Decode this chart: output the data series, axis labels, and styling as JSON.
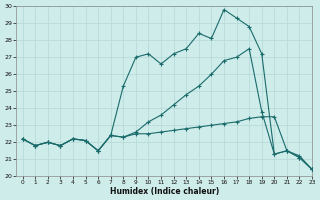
{
  "xlabel": "Humidex (Indice chaleur)",
  "bg_color": "#ceecea",
  "grid_color": "#b8dbd9",
  "line_color": "#1a6b6b",
  "xlim": [
    -0.5,
    23
  ],
  "ylim": [
    20,
    30
  ],
  "xticks": [
    0,
    1,
    2,
    3,
    4,
    5,
    6,
    7,
    8,
    9,
    10,
    11,
    12,
    13,
    14,
    15,
    16,
    17,
    18,
    19,
    20,
    21,
    22,
    23
  ],
  "yticks": [
    20,
    21,
    22,
    23,
    24,
    25,
    26,
    27,
    28,
    29,
    30
  ],
  "series": [
    [
      22.2,
      21.8,
      22.0,
      21.8,
      22.2,
      22.1,
      21.5,
      22.4,
      22.3,
      22.5,
      22.5,
      22.6,
      22.7,
      22.8,
      22.9,
      23.0,
      23.1,
      23.2,
      23.4,
      23.5,
      23.5,
      21.5,
      21.2,
      20.4
    ],
    [
      22.2,
      21.8,
      22.0,
      21.8,
      22.2,
      22.1,
      21.5,
      22.4,
      25.3,
      27.0,
      27.2,
      26.6,
      27.2,
      27.5,
      28.4,
      28.1,
      29.8,
      29.3,
      28.8,
      27.2,
      21.3,
      21.5,
      21.1,
      20.4
    ],
    [
      22.2,
      21.8,
      22.0,
      21.8,
      22.2,
      22.1,
      21.5,
      22.4,
      22.3,
      22.6,
      23.2,
      23.6,
      24.2,
      24.8,
      25.3,
      26.0,
      26.8,
      27.0,
      27.5,
      23.8,
      21.3,
      21.5,
      21.1,
      20.4
    ]
  ]
}
